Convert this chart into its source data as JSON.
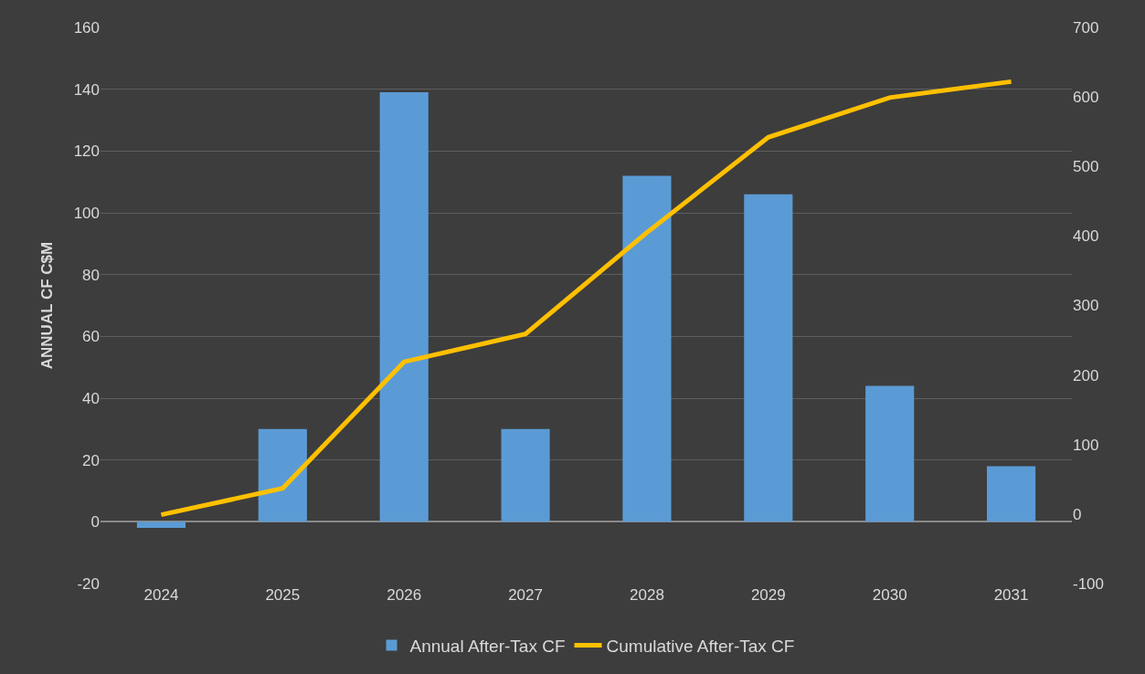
{
  "chart_data": {
    "type": "bar",
    "ylabel": "ANNUAL CF C$M",
    "categories": [
      "2024",
      "2025",
      "2026",
      "2027",
      "2028",
      "2029",
      "2030",
      "2031"
    ],
    "series": [
      {
        "name": "Annual After-Tax CF",
        "color": "#5b9bd5",
        "values": [
          -2,
          30,
          139,
          30,
          112,
          106,
          44,
          18
        ]
      },
      {
        "name": "Cumulative After-Tax CF",
        "color": "#ffc000",
        "type": "line",
        "axis": "y2",
        "values": [
          -1,
          37,
          219,
          259,
          405,
          542,
          599,
          622
        ]
      }
    ],
    "ylim": [
      -20,
      160
    ],
    "yticks": [
      -20,
      0,
      20,
      40,
      60,
      80,
      100,
      120,
      140,
      160
    ],
    "y2lim": [
      -100,
      700
    ],
    "y2ticks": [
      -100,
      0,
      100,
      200,
      300,
      400,
      500,
      600,
      700
    ],
    "grid": "y",
    "legend": "bottom",
    "marker": "none",
    "line_style": "solid"
  }
}
